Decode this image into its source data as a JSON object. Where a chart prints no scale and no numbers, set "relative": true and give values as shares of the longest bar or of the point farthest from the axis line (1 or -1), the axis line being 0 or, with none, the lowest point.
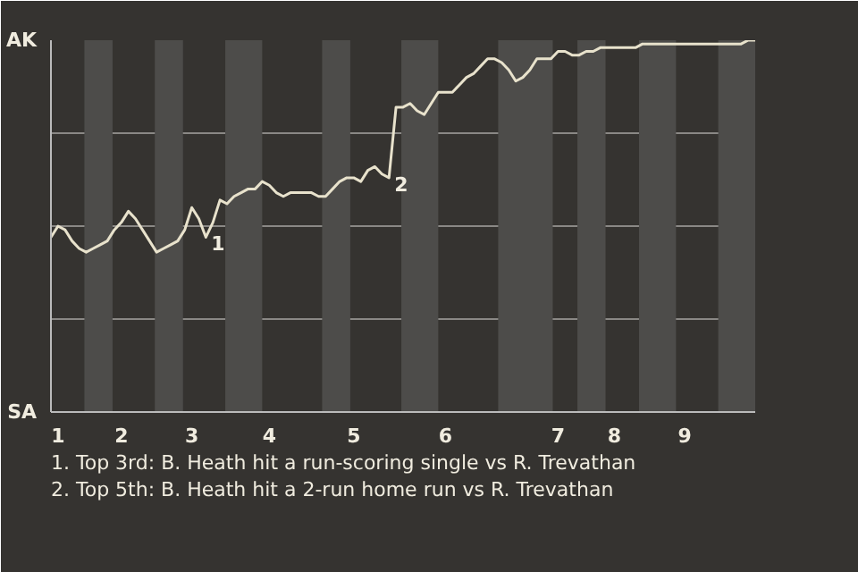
{
  "chart_data": {
    "type": "line",
    "relative": true,
    "categories": [
      null,
      "1",
      null,
      null,
      null,
      null,
      null,
      null,
      null,
      null,
      "2",
      null,
      null,
      null,
      null,
      null,
      null,
      null,
      null,
      null,
      "3",
      null,
      null,
      null,
      null,
      null,
      null,
      null,
      null,
      null,
      null,
      "4",
      null,
      null,
      null,
      null,
      null,
      null,
      null,
      null,
      null,
      null,
      null,
      "5",
      null,
      null,
      null,
      null,
      null,
      null,
      null,
      null,
      null,
      null,
      null,
      null,
      "6",
      null,
      null,
      null,
      null,
      null,
      null,
      null,
      null,
      null,
      null,
      null,
      null,
      null,
      null,
      null,
      "7",
      null,
      null,
      null,
      null,
      null,
      null,
      null,
      "8",
      null,
      null,
      null,
      null,
      null,
      null,
      null,
      null,
      null,
      "9",
      null,
      null,
      null,
      null,
      null,
      null,
      null,
      null,
      null,
      null
    ],
    "series": [
      {
        "color": "#e8e2cc",
        "values": [
          0.47,
          0.5,
          0.49,
          0.46,
          0.44,
          0.43,
          0.44,
          0.45,
          0.46,
          0.49,
          0.51,
          0.54,
          0.52,
          0.49,
          0.46,
          0.43,
          0.44,
          0.45,
          0.46,
          0.49,
          0.55,
          0.52,
          0.47,
          0.51,
          0.57,
          0.56,
          0.58,
          0.59,
          0.6,
          0.6,
          0.62,
          0.61,
          0.59,
          0.58,
          0.59,
          0.59,
          0.59,
          0.59,
          0.58,
          0.58,
          0.6,
          0.62,
          0.63,
          0.63,
          0.62,
          0.65,
          0.66,
          0.64,
          0.63,
          0.82,
          0.82,
          0.83,
          0.81,
          0.8,
          0.83,
          0.86,
          0.86,
          0.86,
          0.88,
          0.9,
          0.91,
          0.93,
          0.95,
          0.95,
          0.94,
          0.92,
          0.89,
          0.9,
          0.92,
          0.95,
          0.95,
          0.95,
          0.97,
          0.97,
          0.96,
          0.96,
          0.97,
          0.97,
          0.98,
          0.98,
          0.98,
          0.98,
          0.98,
          0.98,
          0.99,
          0.99,
          0.99,
          0.99,
          0.99,
          0.99,
          0.99,
          0.99,
          0.99,
          0.99,
          0.99,
          0.99,
          0.99,
          0.99,
          0.99,
          1.0,
          1.0
        ]
      }
    ],
    "grid": "y",
    "marker": "none",
    "line_style": "solid",
    "annotations": [
      "AK",
      "SA",
      "1",
      "2",
      "1. Top 3rd: B. Heath hit a run-scoring single vs R. Trevathan",
      "2. Top 5th: B. Heath hit a 2-run home run vs R. Trevathan"
    ]
  }
}
